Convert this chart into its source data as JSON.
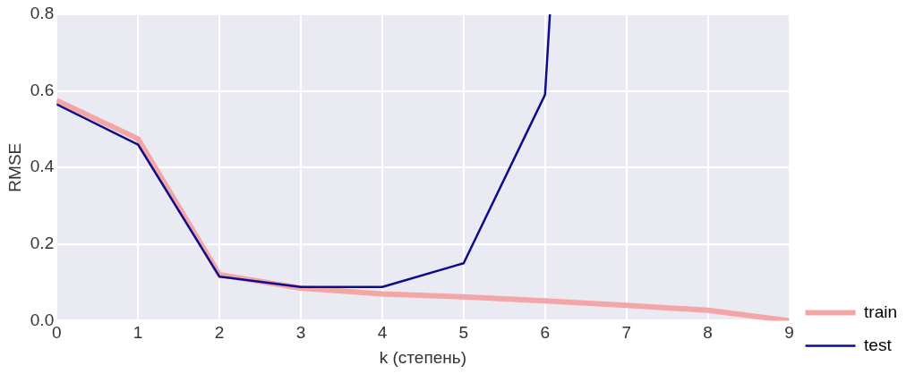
{
  "chart_data": {
    "type": "line",
    "xlabel": "k (степень)",
    "ylabel": "RMSE",
    "x": [
      0,
      1,
      2,
      3,
      4,
      5,
      6,
      7,
      8,
      9
    ],
    "xlim": [
      0,
      9
    ],
    "xticks": [
      0,
      1,
      2,
      3,
      4,
      5,
      6,
      7,
      8,
      9
    ],
    "ylim": [
      0,
      0.8
    ],
    "yticks": [
      {
        "value": 0,
        "label": "0.0"
      },
      0.2,
      0.4,
      0.6,
      0.8
    ],
    "grid": true,
    "legend": "right",
    "marker": "none",
    "line_style": "solid",
    "series": [
      {
        "name": "train",
        "color": "#f4a6a6",
        "values": [
          0.575,
          0.475,
          0.12,
          0.085,
          0.07,
          0.062,
          0.052,
          0.04,
          0.027,
          0.0
        ]
      },
      {
        "name": "test",
        "color": "#0d0d8c",
        "x": [
          0,
          1,
          2,
          3,
          4,
          5,
          6,
          6.06
        ],
        "values": [
          0.565,
          0.46,
          0.115,
          0.088,
          0.088,
          0.15,
          0.59,
          0.8
        ]
      }
    ]
  }
}
